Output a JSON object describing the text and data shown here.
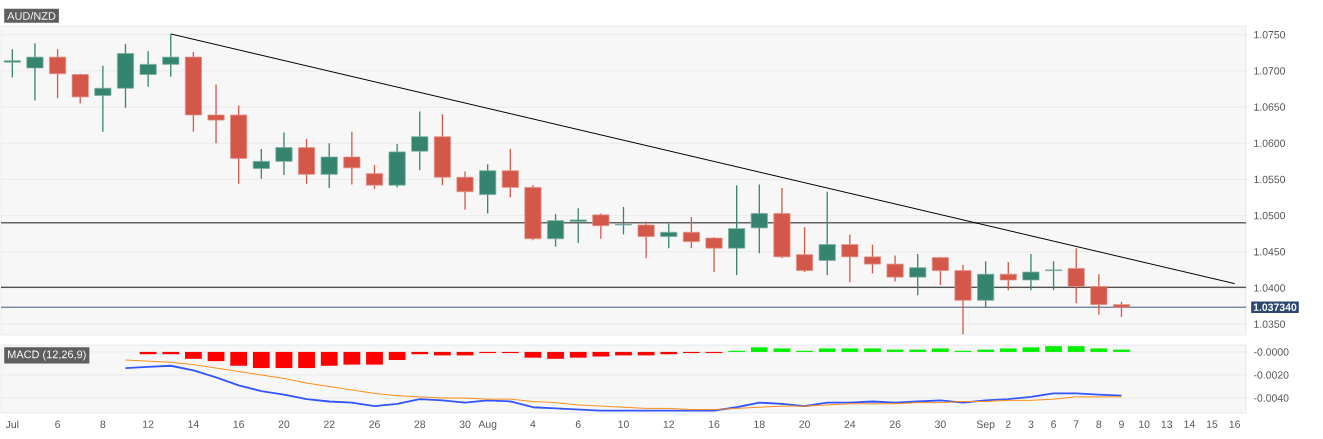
{
  "chart_data": [
    {
      "type": "candlestick",
      "title": "AUD/NZD",
      "categories": [
        null,
        null,
        null,
        null,
        null,
        null,
        null,
        null,
        null,
        null,
        null,
        null,
        null,
        null,
        null,
        null,
        null,
        null,
        null,
        null,
        null,
        null,
        null,
        null,
        null,
        null,
        null,
        null,
        null,
        null,
        null,
        null,
        null,
        null,
        null,
        null,
        null,
        null,
        null,
        null,
        null,
        null,
        null,
        null,
        null,
        null,
        null,
        null,
        null,
        null,
        null,
        null,
        null,
        null,
        null
      ],
      "ohlc": [
        [
          1.0712,
          1.073,
          1.0691,
          1.0714
        ],
        [
          1.0704,
          1.0738,
          1.0659,
          1.0719
        ],
        [
          1.0719,
          1.073,
          1.0662,
          1.0696
        ],
        [
          1.0695,
          1.0696,
          1.0655,
          1.0664
        ],
        [
          1.0666,
          1.0707,
          1.0616,
          1.0676
        ],
        [
          1.0676,
          1.0737,
          1.0649,
          1.0724
        ],
        [
          1.0695,
          1.0727,
          1.0678,
          1.0709
        ],
        [
          1.0709,
          1.0751,
          1.0692,
          1.0719
        ],
        [
          1.0719,
          1.0726,
          1.0616,
          1.0639
        ],
        [
          1.0639,
          1.0681,
          1.06,
          1.0632
        ],
        [
          1.0639,
          1.0652,
          1.0544,
          1.0579
        ],
        [
          1.0565,
          1.0592,
          1.0551,
          1.0575
        ],
        [
          1.0575,
          1.0615,
          1.0556,
          1.0594
        ],
        [
          1.0594,
          1.0606,
          1.0544,
          1.0557
        ],
        [
          1.0557,
          1.06,
          1.0538,
          1.0581
        ],
        [
          1.0581,
          1.0616,
          1.0543,
          1.0566
        ],
        [
          1.0558,
          1.057,
          1.0537,
          1.0542
        ],
        [
          1.0542,
          1.0599,
          1.0539,
          1.0588
        ],
        [
          1.0589,
          1.0644,
          1.0563,
          1.0609
        ],
        [
          1.0609,
          1.064,
          1.0542,
          1.0553
        ],
        [
          1.0553,
          1.0561,
          1.0508,
          1.0533
        ],
        [
          1.0529,
          1.0571,
          1.0503,
          1.0562
        ],
        [
          1.0562,
          1.0592,
          1.0525,
          1.0539
        ],
        [
          1.0539,
          1.0542,
          1.0466,
          1.0468
        ],
        [
          1.0468,
          1.0502,
          1.0457,
          1.0493
        ],
        [
          1.0492,
          1.051,
          1.0462,
          1.0494
        ],
        [
          1.0501,
          1.0503,
          1.0468,
          1.0486
        ],
        [
          1.0487,
          1.0512,
          1.0474,
          1.0488
        ],
        [
          1.0487,
          1.0492,
          1.0441,
          1.0471
        ],
        [
          1.0471,
          1.0489,
          1.0455,
          1.0477
        ],
        [
          1.0477,
          1.0498,
          1.0455,
          1.0464
        ],
        [
          1.0469,
          1.047,
          1.0422,
          1.0455
        ],
        [
          1.0455,
          1.0542,
          1.0418,
          1.0482
        ],
        [
          1.0483,
          1.0543,
          1.0448,
          1.0503
        ],
        [
          1.0503,
          1.0538,
          1.0441,
          1.0443
        ],
        [
          1.0446,
          1.0484,
          1.0422,
          1.0424
        ],
        [
          1.0438,
          1.0533,
          1.0418,
          1.046
        ],
        [
          1.046,
          1.0474,
          1.0408,
          1.0443
        ],
        [
          1.0443,
          1.046,
          1.042,
          1.0433
        ],
        [
          1.0433,
          1.0445,
          1.0409,
          1.0415
        ],
        [
          1.0415,
          1.0447,
          1.039,
          1.0428
        ],
        [
          1.0442,
          1.0443,
          1.0404,
          1.0424
        ],
        [
          1.0424,
          1.0432,
          1.0336,
          1.0383
        ],
        [
          1.0383,
          1.0437,
          1.0373,
          1.0419
        ],
        [
          1.0419,
          1.0436,
          1.0397,
          1.0411
        ],
        [
          1.0411,
          1.0447,
          1.0397,
          1.0422
        ],
        [
          1.0424,
          1.0437,
          1.0397,
          1.0425
        ],
        [
          1.0427,
          1.0455,
          1.0379,
          1.0402
        ],
        [
          1.0402,
          1.0419,
          1.0363,
          1.0377
        ],
        [
          1.0377,
          1.0381,
          1.036,
          1.03734
        ],
        null,
        null,
        null,
        null,
        null
      ],
      "colors": [
        "#35846f",
        "#35846f",
        "#d45849",
        "#d45849",
        "#35846f",
        "#35846f",
        "#35846f",
        "#35846f",
        "#d45849",
        "#d45849",
        "#d45849",
        "#35846f",
        "#35846f",
        "#d45849",
        "#35846f",
        "#d45849",
        "#d45849",
        "#35846f",
        "#35846f",
        "#d45849",
        "#d45849",
        "#35846f",
        "#d45849",
        "#d45849",
        "#35846f",
        "#35846f",
        "#d45849",
        "#35846f",
        "#d45849",
        "#35846f",
        "#d45849",
        "#d45849",
        "#35846f",
        "#35846f",
        "#d45849",
        "#d45849",
        "#35846f",
        "#d45849",
        "#d45849",
        "#d45849",
        "#35846f",
        "#d45849",
        "#d45849",
        "#35846f",
        "#d45849",
        "#35846f",
        "#35846f",
        "#d45849",
        "#d45849",
        "#d45849",
        null,
        null,
        null,
        null,
        null
      ],
      "ylim": [
        1.0335,
        1.0762
      ],
      "yticks": [
        {
          "value": 1.035,
          "label": "1.0350"
        },
        {
          "value": 1.04,
          "label": "1.0400"
        },
        {
          "value": 1.045,
          "label": "1.0450"
        },
        {
          "value": 1.05,
          "label": "1.0500"
        },
        {
          "value": 1.055,
          "label": "1.0550"
        },
        {
          "value": 1.06,
          "label": "1.0600"
        },
        {
          "value": 1.065,
          "label": "1.0650"
        },
        {
          "value": 1.07,
          "label": "1.0700"
        },
        {
          "value": 1.075,
          "label": "1.0750"
        }
      ],
      "grid": "y",
      "ref_lines": [
        {
          "axis": "y",
          "value": 1.049,
          "color": "#000000"
        },
        {
          "axis": "y",
          "value": 1.0401,
          "color": "#000000"
        },
        {
          "axis": "y",
          "value": 1.03734,
          "label": "1.037340",
          "color": "#2c4770"
        }
      ],
      "series": [
        {
          "type": "line",
          "values": [
            null,
            null,
            null,
            null,
            null,
            null,
            null,
            1.0751,
            null,
            null,
            null,
            null,
            null,
            null,
            null,
            null,
            null,
            null,
            null,
            null,
            null,
            null,
            null,
            null,
            null,
            null,
            null,
            null,
            null,
            null,
            null,
            null,
            null,
            null,
            null,
            null,
            null,
            null,
            null,
            null,
            null,
            null,
            null,
            null,
            null,
            null,
            null,
            null,
            null,
            null,
            null,
            null,
            null,
            null,
            1.0406
          ],
          "color": "#000000"
        }
      ]
    },
    {
      "type": "bar",
      "title": "MACD (12,26,9)",
      "categories": [
        "Jul",
        null,
        "6",
        null,
        "8",
        null,
        "12",
        null,
        "14",
        null,
        "16",
        null,
        "20",
        null,
        "22",
        null,
        "26",
        null,
        "28",
        null,
        "30",
        "Aug",
        null,
        "4",
        null,
        "6",
        null,
        "10",
        null,
        "12",
        null,
        "16",
        null,
        "18",
        null,
        "20",
        null,
        "24",
        null,
        "26",
        null,
        "30",
        null,
        "Sep",
        "2",
        "3",
        "6",
        "7",
        "8",
        "9",
        "10",
        "13",
        "14",
        "15",
        "16"
      ],
      "ylim": [
        -0.0053,
        0.0006
      ],
      "yticks": [
        {
          "value": 0,
          "label": "-0.0000"
        },
        {
          "value": -0.002,
          "label": "-0.0020"
        },
        {
          "value": -0.004,
          "label": "-0.0040"
        }
      ],
      "grid": "y",
      "series": [
        {
          "type": "bar",
          "values": [
            null,
            null,
            null,
            null,
            null,
            null,
            -0.0002,
            -0.0002,
            -0.0006,
            -0.0008,
            -0.0012,
            -0.0014,
            -0.0014,
            -0.0014,
            -0.0012,
            -0.0011,
            -0.0011,
            -0.0007,
            -0.0002,
            -0.0003,
            -0.0003,
            -0.0001,
            -0.0001,
            -0.0005,
            -0.0006,
            -0.0005,
            -0.0004,
            -0.0003,
            -0.0003,
            -0.0002,
            -0.0001,
            -0.0001,
            0.0001,
            0.0004,
            0.0003,
            0.0001,
            0.0003,
            0.0003,
            0.0003,
            0.0002,
            0.0002,
            0.0003,
            0.0001,
            0.0002,
            0.0003,
            0.0004,
            0.0005,
            0.0005,
            0.0003,
            0.0002,
            null,
            null,
            null,
            null,
            null
          ],
          "colors": [
            null,
            null,
            null,
            null,
            null,
            null,
            "#ff0000",
            "#ff0000",
            "#ff0000",
            "#ff0000",
            "#ff0000",
            "#ff0000",
            "#ff0000",
            "#ff0000",
            "#ff0000",
            "#ff0000",
            "#ff0000",
            "#ff0000",
            "#ff0000",
            "#ff0000",
            "#ff0000",
            "#ff0000",
            "#ff0000",
            "#ff0000",
            "#ff0000",
            "#ff0000",
            "#ff0000",
            "#ff0000",
            "#ff0000",
            "#ff0000",
            "#ff0000",
            "#ff0000",
            "#00ee00",
            "#00ee00",
            "#00ee00",
            "#00ee00",
            "#00ee00",
            "#00ee00",
            "#00ee00",
            "#00ee00",
            "#00ee00",
            "#00ee00",
            "#00ee00",
            "#00ee00",
            "#00ee00",
            "#00ee00",
            "#00ee00",
            "#00ee00",
            "#00ee00",
            "#00ee00",
            null,
            null,
            null,
            null,
            null
          ]
        },
        {
          "type": "line",
          "color": "#3355ff",
          "values": [
            null,
            null,
            null,
            null,
            null,
            -0.0014,
            -0.0013,
            -0.0012,
            -0.0016,
            -0.0022,
            -0.0029,
            -0.0034,
            -0.0037,
            -0.0041,
            -0.0043,
            -0.0044,
            -0.0047,
            -0.0045,
            -0.0041,
            -0.0042,
            -0.0044,
            -0.0042,
            -0.0043,
            -0.0048,
            -0.0049,
            -0.005,
            -0.0051,
            -0.0051,
            -0.0051,
            -0.0051,
            -0.0051,
            -0.0051,
            -0.0048,
            -0.0044,
            -0.0045,
            -0.0047,
            -0.0044,
            -0.0044,
            -0.0043,
            -0.0044,
            -0.0043,
            -0.0042,
            -0.0044,
            -0.0042,
            -0.0041,
            -0.0039,
            -0.0036,
            -0.0036,
            -0.0037,
            -0.0038,
            null,
            null,
            null,
            null,
            null
          ]
        },
        {
          "type": "line",
          "color": "#ff8c1a",
          "values": [
            null,
            null,
            null,
            null,
            null,
            -0.0007,
            -0.0008,
            -0.0009,
            -0.0011,
            -0.0014,
            -0.0017,
            -0.002,
            -0.0023,
            -0.0027,
            -0.003,
            -0.0033,
            -0.0036,
            -0.0038,
            -0.0039,
            -0.004,
            -0.004,
            -0.0041,
            -0.0041,
            -0.0043,
            -0.0044,
            -0.0046,
            -0.0047,
            -0.0048,
            -0.0049,
            -0.0049,
            -0.005,
            -0.005,
            -0.0049,
            -0.0048,
            -0.0047,
            -0.0047,
            -0.0046,
            -0.0045,
            -0.0045,
            -0.0045,
            -0.0044,
            -0.0044,
            -0.0043,
            -0.0043,
            -0.0042,
            -0.0042,
            -0.0041,
            -0.0039,
            -0.0039,
            -0.0039,
            null,
            null,
            null,
            null,
            null
          ]
        }
      ]
    }
  ]
}
